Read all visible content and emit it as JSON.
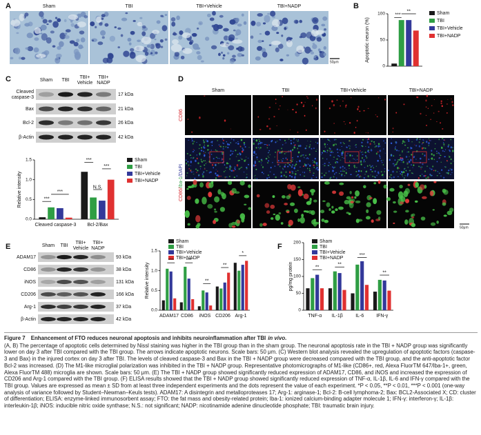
{
  "panel_labels": [
    "A",
    "B",
    "C",
    "D",
    "E",
    "F"
  ],
  "panel_a": {
    "columns": [
      "Sham",
      "TBI",
      "TBI+Vehicle",
      "TBI+NADP"
    ],
    "scale_bar": "50μm"
  },
  "panel_c_blot": {
    "lanes": [
      [
        "Sham"
      ],
      [
        "TBI"
      ],
      [
        "TBI+",
        "Vehicle"
      ],
      [
        "TBI+",
        "NADP"
      ]
    ],
    "rows": [
      {
        "label": [
          "Cleaved",
          "caspase-3"
        ],
        "size": "17 kDa"
      },
      {
        "label": [
          "Bax"
        ],
        "size": "21 kDa"
      },
      {
        "label": [
          "Bcl-2"
        ],
        "size": "26 kDa"
      },
      {
        "label": [
          "β-Actin"
        ],
        "size": "42 kDa"
      }
    ]
  },
  "panel_d": {
    "columns": [
      "Sham",
      "TBI",
      "TBI+Vehicle",
      "TBI+NADP"
    ],
    "row_labels": [
      [
        "CD86"
      ],
      [
        "CD86/",
        "Iba-1",
        "/DAPI"
      ]
    ],
    "scale_bar": "50μm"
  },
  "panel_e_blot": {
    "lanes": [
      [
        "Sham"
      ],
      [
        "TBI"
      ],
      [
        "TBI+",
        "Vehicle"
      ],
      [
        "TBI+",
        "NADP"
      ]
    ],
    "rows": [
      {
        "label": [
          "ADAM17"
        ],
        "size": "93 kDa"
      },
      {
        "label": [
          "CD86"
        ],
        "size": "38 kDa"
      },
      {
        "label": [
          "iNOS"
        ],
        "size": "131 kDa"
      },
      {
        "label": [
          "CD206"
        ],
        "size": "166 kDa"
      },
      {
        "label": [
          "Arg-1"
        ],
        "size": "37 kDa"
      },
      {
        "label": [
          "β-Actin"
        ],
        "size": "42 kDa"
      }
    ]
  },
  "chart_data": [
    {
      "type": "bar",
      "y_label": "Apoptotic neuron (%)",
      "categories": [
        null
      ],
      "series": [
        {
          "name": "Sham",
          "color": "#1a1a1a",
          "values": [
            5
          ]
        },
        {
          "name": "TBI",
          "color": "#2f9e44",
          "values": [
            88
          ]
        },
        {
          "name": "TBI+Vehicle",
          "color": "#33399a",
          "values": [
            88
          ]
        },
        {
          "name": "TBI+NADP",
          "color": "#e03131",
          "values": [
            68
          ]
        }
      ],
      "ylim": [
        0,
        100
      ],
      "yticks": [
        0,
        50,
        100
      ],
      "annotations": [
        "***",
        "**"
      ],
      "legend": "right"
    },
    {
      "type": "bar",
      "y_label": "Relative intensity",
      "categories": [
        "Cleaved caspase-3",
        "Bcl-2/Bax"
      ],
      "series": [
        {
          "name": "Sham",
          "color": "#1a1a1a",
          "values": [
            0.05,
            1.2
          ]
        },
        {
          "name": "TBI",
          "color": "#2f9e44",
          "values": [
            0.3,
            0.55
          ]
        },
        {
          "name": "TBI+Vehicle",
          "color": "#33399a",
          "values": [
            0.28,
            0.47
          ]
        },
        {
          "name": "TBI+NADP",
          "color": "#e03131",
          "values": [
            0.04,
            1.0
          ]
        }
      ],
      "ylim": [
        0,
        1.5
      ],
      "yticks": [
        {
          "value": 0,
          "label": "0.0"
        },
        0.5,
        {
          "value": 1,
          "label": "1.0"
        },
        1.5
      ],
      "annotations": [
        "***",
        "***",
        "***",
        "N.S.",
        "***"
      ],
      "legend": "right"
    },
    {
      "type": "bar",
      "y_label": "Relative intensity",
      "categories": [
        "ADAM17",
        "CD86",
        "iNOS",
        "CD206",
        "Arg-1"
      ],
      "series": [
        {
          "name": "Sham",
          "color": "#1a1a1a",
          "values": [
            0.25,
            0.2,
            0.1,
            0.6,
            1.2
          ]
        },
        {
          "name": "TBI",
          "color": "#2f9e44",
          "values": [
            1.05,
            1.1,
            0.5,
            0.55,
            1.0
          ]
        },
        {
          "name": "TBI+Vehicle",
          "color": "#33399a",
          "values": [
            0.98,
            0.8,
            0.45,
            0.7,
            1.15
          ]
        },
        {
          "name": "TBI+NADP",
          "color": "#e03131",
          "values": [
            0.3,
            0.28,
            0.12,
            0.95,
            1.25
          ]
        }
      ],
      "ylim": [
        0,
        1.5
      ],
      "yticks": [
        {
          "value": 0,
          "label": "0.0"
        },
        0.5,
        {
          "value": 1,
          "label": "1.0"
        },
        1.5
      ],
      "annotations": [
        "***",
        "***",
        "**",
        "**",
        "*"
      ],
      "legend": "top"
    },
    {
      "type": "bar",
      "y_label": "pg/mg protein",
      "categories": [
        "TNF-α",
        "IL-1β",
        "IL-6",
        "IFN-γ"
      ],
      "series": [
        {
          "name": "Sham",
          "color": "#1a1a1a",
          "values": [
            65,
            65,
            50,
            55
          ]
        },
        {
          "name": "TBI",
          "color": "#2f9e44",
          "values": [
            95,
            115,
            135,
            90
          ]
        },
        {
          "name": "TBI+Vehicle",
          "color": "#33399a",
          "values": [
            105,
            110,
            145,
            88
          ]
        },
        {
          "name": "TBI+NADP",
          "color": "#e03131",
          "values": [
            65,
            60,
            75,
            58
          ]
        }
      ],
      "ylim": [
        0,
        200
      ],
      "yticks": [
        0,
        50,
        100,
        150,
        200
      ],
      "annotations": [
        "**",
        "**",
        "***",
        "**"
      ],
      "legend": "top"
    }
  ],
  "caption": {
    "figure": "Figure 7",
    "title": "Enhancement of FTO reduces neuronal apoptosis and inhibits neuroinflammation after TBI",
    "title_italic": "in vivo.",
    "body": "(A, B) The percentage of apoptotic cells determined by Nissl staining was higher in the TBI group than in the sham group. The neuronal apoptosis rate in the TBI + NADP group was significantly lower on day 3 after TBI compared with the TBI group. The arrows indicate apoptotic neurons. Scale bars: 50 μm. (C) Western blot analysis revealed the upregulation of apoptotic factors (caspase-3 and Bax) in the injured cortex on day 3 after TBI. The levels of cleaved caspase-3 and Bax in the TBI + NADP group were decreased compared with the TBI group, and the anti-apoptotic factor Bcl-2 was increased. (D) The M1-like microglial polarization was inhibited in the TBI + NADP group. Representative photomicrographs of M1-like (CD86+, red, Alexa FluorTM 647/Iba-1+, green, Alexa FluorTM 488) microglia are shown. Scale bars: 50 μm. (E) The TBI + NADP group showed significantly reduced expression of ADAM17, CD86, and iNOS and increased the expression of CD206 and Arg-1 compared with the TBI group. (F) ELISA results showed that the TBI + NADP group showed significantly reduced expression of TNF-α, IL-1β, IL-6 and IFN-γ compared with the TBI group. Values are expressed as mean ± SD from at least three independent experiments and the dots represent the value of each experiment. *P < 0.05, **P < 0.01, ***P < 0.001 (one-way analysis of variance followed by Student–Newman–Keuls tests). ADAM17: A disintegrin and metalloproteases 17; Arg-1: arginase-1; Bcl-2: B-cell lymphoma-2; Bax: BCL2-Associated X; CD: cluster of differentiation; ELISA: enzyme-linked immunosorbent assay; FTO: the fat mass and obesity-related protein; Iba-1: ionized calcium-binding adapter molecule 1; IFN-γ: interferon-γ; IL-1β: interleukin-1β; iNOS: inducible nitric oxide synthase; N.S.: not significant; NADP: nicotinamide adenine dinucleotide phosphate; TBI: traumatic brain injury."
  }
}
